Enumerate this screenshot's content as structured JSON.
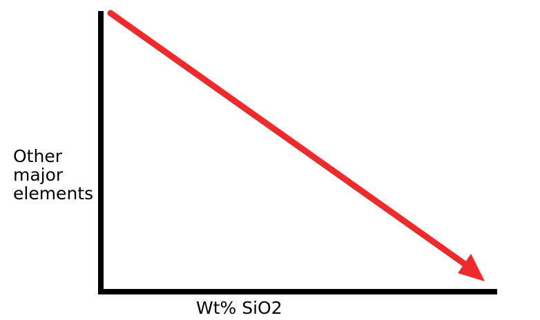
{
  "diagram": {
    "x_axis_label": "Wt% SiO2",
    "y_axis_label_lines": [
      "Other",
      "major",
      "elements"
    ],
    "colors": {
      "axes": "#000000",
      "trend_arrow": "#ee2a2a",
      "background": "#ffffff"
    },
    "trend": "decreasing"
  }
}
